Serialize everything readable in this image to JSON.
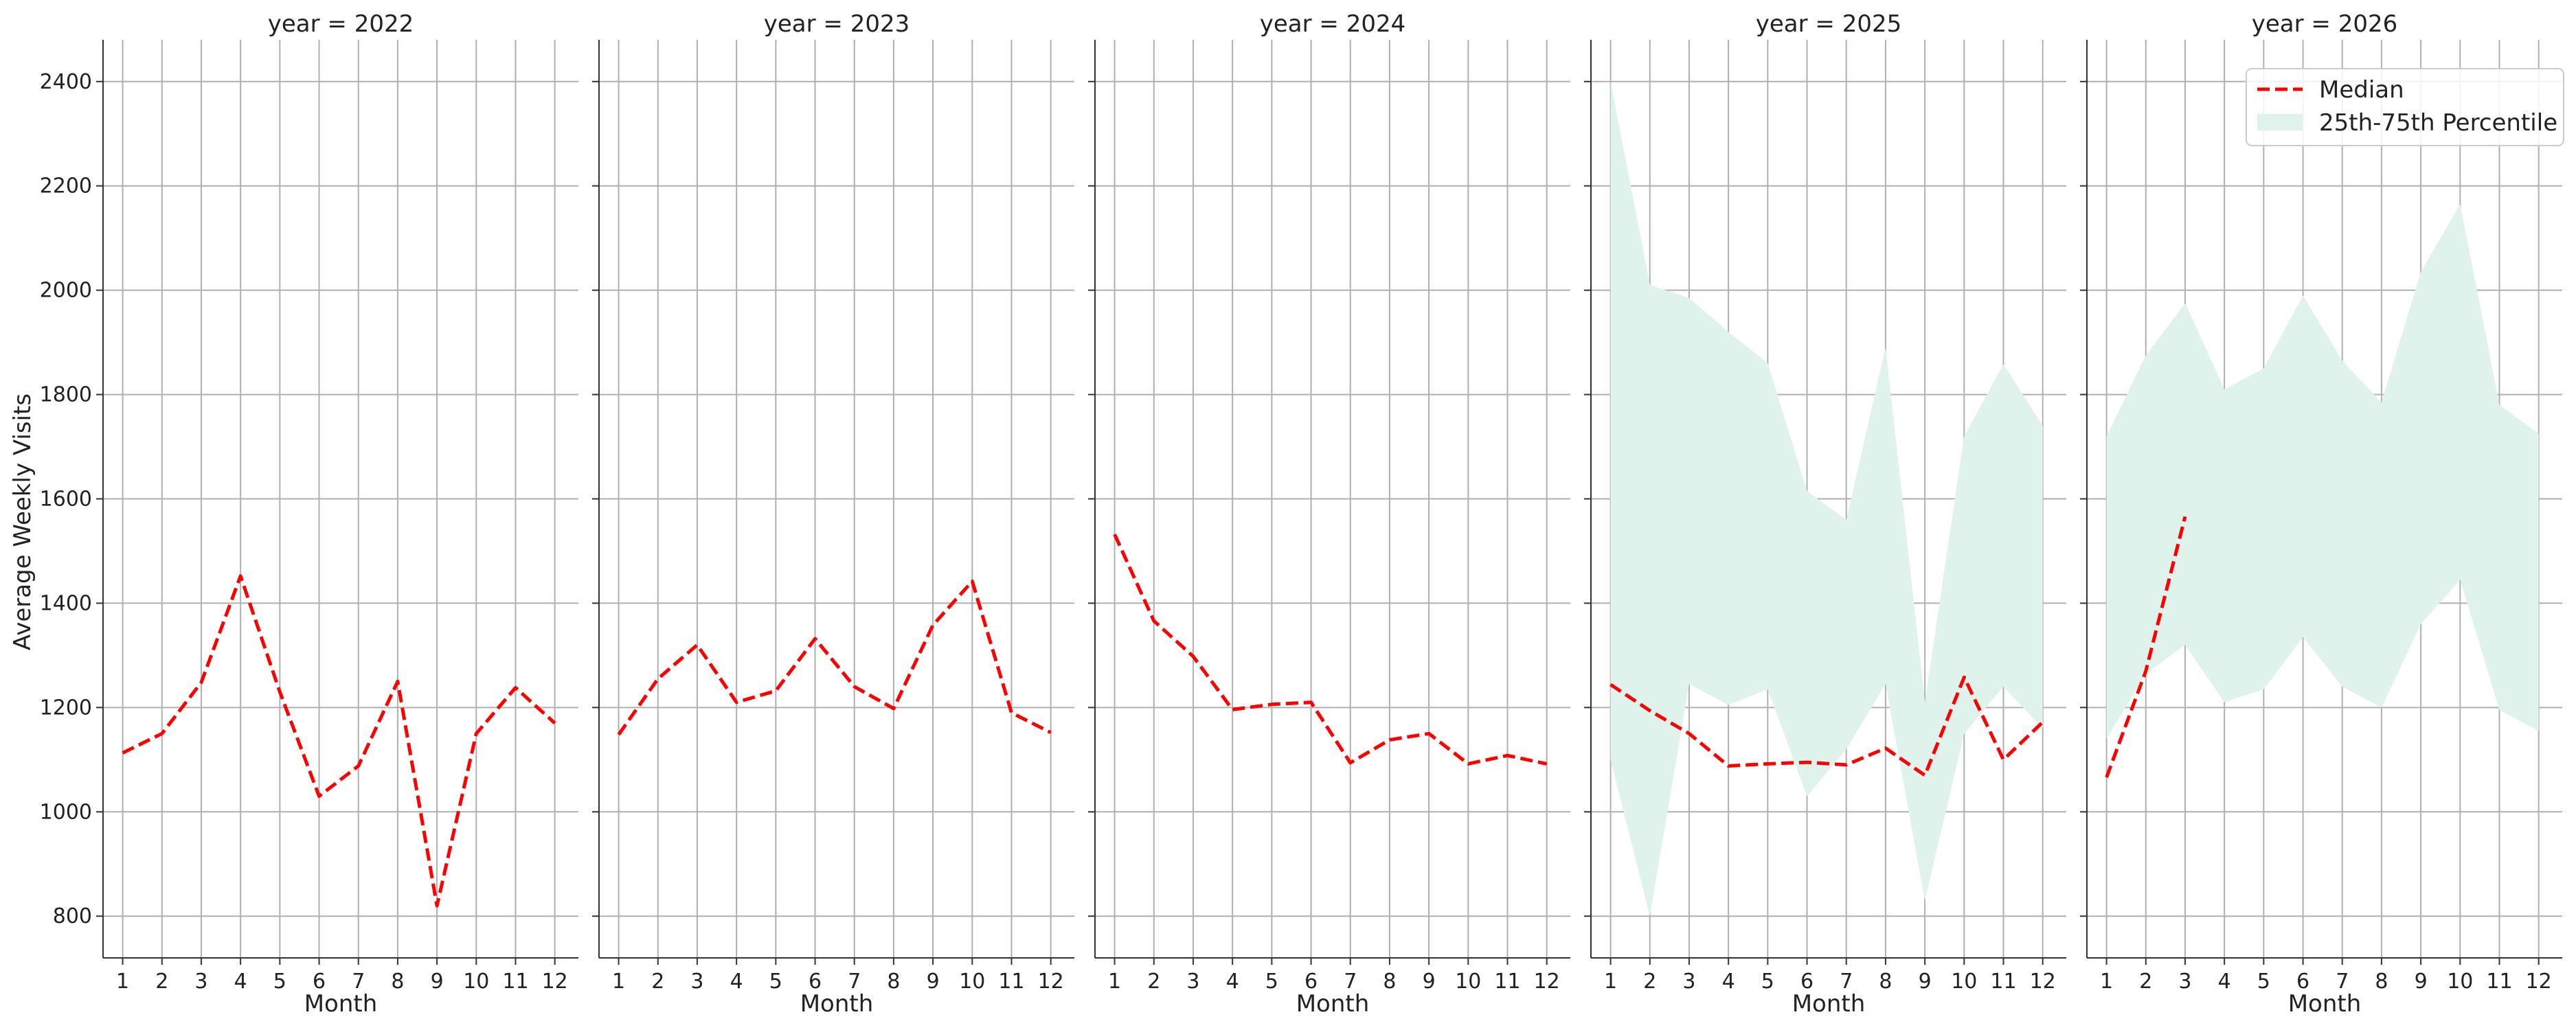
{
  "chart_data": {
    "type": "line",
    "ylabel": "Average Weekly Visits",
    "xlabel": "Month",
    "x": [
      1,
      2,
      3,
      4,
      5,
      6,
      7,
      8,
      9,
      10,
      11,
      12
    ],
    "ylim": [
      720,
      2480
    ],
    "xlim": [
      0.5,
      12.6
    ],
    "yticks": [
      800,
      1000,
      1200,
      1400,
      1600,
      1800,
      2000,
      2200,
      2400
    ],
    "grid": true,
    "legend_position": "top-right",
    "legend": [
      {
        "name": "Median",
        "color": "#ff0000",
        "style": "dashed"
      },
      {
        "name": "25th-75th Percentile",
        "color": "#dff2ec",
        "style": "fill"
      }
    ],
    "panels": [
      {
        "title": "year = 2022",
        "median": [
          1113,
          1150,
          1248,
          1452,
          1230,
          1030,
          1088,
          1250,
          820,
          1150,
          1238,
          1170
        ],
        "band": null
      },
      {
        "title": "year = 2023",
        "median": [
          1148,
          1255,
          1320,
          1210,
          1232,
          1332,
          1240,
          1198,
          1358,
          1442,
          1190,
          1152
        ],
        "band": null
      },
      {
        "title": "year = 2024",
        "median": [
          1532,
          1366,
          1298,
          1196,
          1206,
          1210,
          1094,
          1138,
          1150,
          1092,
          1108,
          1092
        ],
        "band": null
      },
      {
        "title": "year = 2025",
        "median": [
          1244,
          1194,
          1150,
          1088,
          1092,
          1095,
          1090,
          1122,
          1070,
          1258,
          1100,
          1172
        ],
        "band": {
          "lower": [
            1100,
            800,
            1245,
            1205,
            1235,
            1030,
            1120,
            1245,
            830,
            1150,
            1240,
            1160
          ],
          "upper": [
            2400,
            2010,
            1985,
            1920,
            1860,
            1615,
            1560,
            1890,
            1210,
            1720,
            1858,
            1740
          ]
        }
      },
      {
        "title": "year = 2026",
        "median": [
          1066,
          1270,
          1566,
          null,
          null,
          null,
          null,
          null,
          null,
          null,
          null,
          null
        ],
        "band": {
          "lower": [
            1140,
            1265,
            1320,
            1210,
            1235,
            1335,
            1240,
            1200,
            1360,
            1445,
            1195,
            1155
          ],
          "upper": [
            1720,
            1875,
            1975,
            1810,
            1850,
            1990,
            1865,
            1785,
            2035,
            2165,
            1780,
            1725
          ]
        }
      }
    ]
  }
}
